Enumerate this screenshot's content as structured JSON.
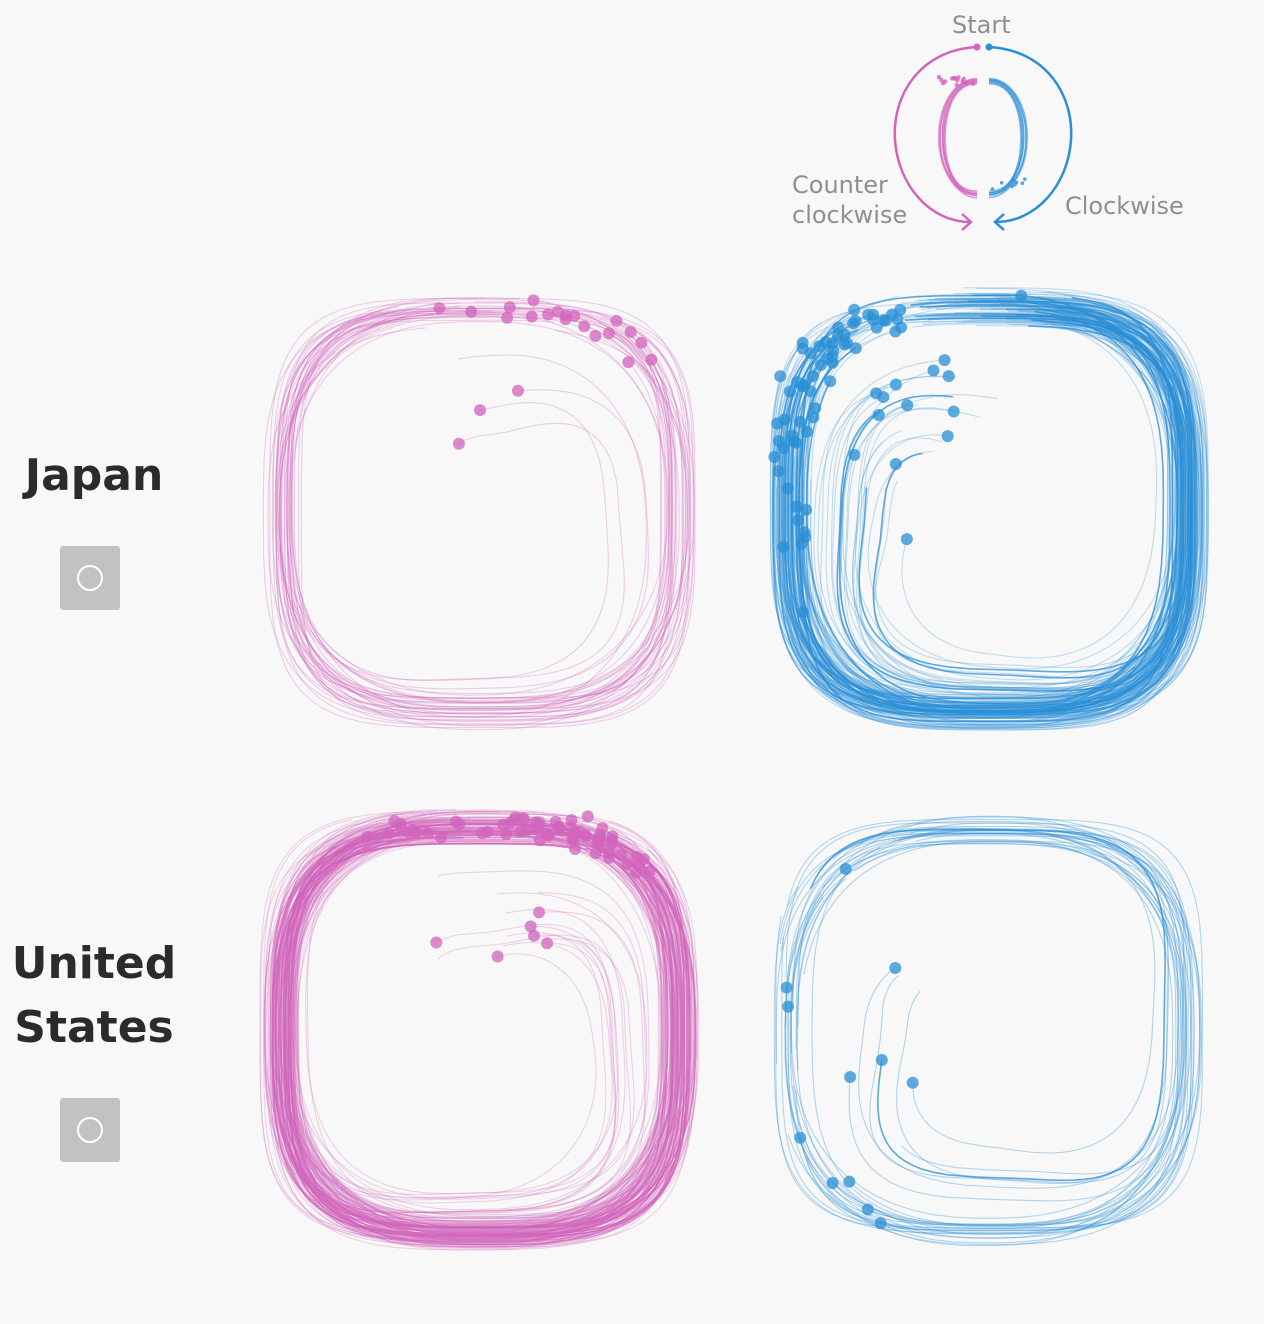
{
  "legend": {
    "start_label": "Start",
    "counter_clockwise_label": "Counter clockwise",
    "clockwise_label": "Clockwise"
  },
  "rows": [
    {
      "country": "Japan",
      "button_icon": "circle-icon"
    },
    {
      "country": "United States",
      "button_icon": "circle-icon"
    }
  ],
  "colors": {
    "counter_clockwise": "#d264bc",
    "clockwise": "#2a8fd6",
    "label_gray": "#8f8f8f",
    "button_gray": "#c2c2c2"
  },
  "chart_data": {
    "type": "small-multiples",
    "description_axis": "drawing direction",
    "columns": [
      "Counter clockwise",
      "Clockwise"
    ],
    "panels": [
      {
        "country": "Japan",
        "direction": "counter_clockwise",
        "stroke_count": 40,
        "end_dot_count": 22
      },
      {
        "country": "Japan",
        "direction": "clockwise",
        "stroke_count": 160,
        "end_dot_count": 75
      },
      {
        "country": "United States",
        "direction": "counter_clockwise",
        "stroke_count": 150,
        "end_dot_count": 70
      },
      {
        "country": "United States",
        "direction": "clockwise",
        "stroke_count": 30,
        "end_dot_count": 12
      }
    ]
  }
}
